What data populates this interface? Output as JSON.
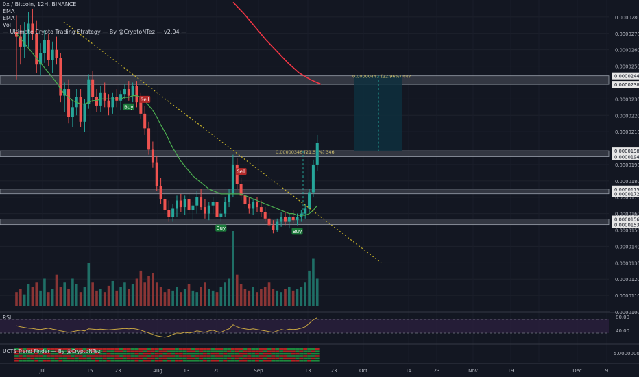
{
  "legend": {
    "symbol_line": "0x / Bitcoin, 12H, BINANCE",
    "ema1": "EMA",
    "ema2": "EMA",
    "vol": "Vol",
    "strategy": "— Ultimate Crypto Trading Strategy — By @CryptoNTez — v2.04 —"
  },
  "colors": {
    "background": "#131722",
    "up": "#26a69a",
    "down": "#ef5350",
    "ema_fast": "#4caf50",
    "ema_slow": "#f23645",
    "trendline": "#c8b32a",
    "zone_fill": "#3a3d48",
    "target_box": "#0e2f3d",
    "rsi_line": "#c7a642",
    "rsi_band": "#2a1f3d",
    "tag_text": "#d0c070"
  },
  "chart_data": {
    "type": "candlestick",
    "symbol": "0x / Bitcoin",
    "interval": "12H",
    "exchange": "BINANCE",
    "price_axis": {
      "min": 1e-05,
      "max": 2.9e-05,
      "ticks": [
        "0.00002800",
        "0.00002700",
        "0.00002600",
        "0.00002500",
        "0.00002300",
        "0.00002200",
        "0.00002100",
        "0.00001900",
        "0.00001800",
        "0.00001700",
        "0.00001600",
        "0.00001500",
        "0.00001400",
        "0.00001300",
        "0.00001200",
        "0.00001100",
        "0.00001000"
      ]
    },
    "price_labels": [
      {
        "text": "0.00002441",
        "value": 2.441e-05
      },
      {
        "text": "0.00002389",
        "value": 2.389e-05
      },
      {
        "text": "0.00001983",
        "value": 1.983e-05
      },
      {
        "text": "0.00001948",
        "value": 1.948e-05
      },
      {
        "text": "0.00001750",
        "value": 1.75e-05
      },
      {
        "text": "0.00001721",
        "value": 1.721e-05
      },
      {
        "text": "0.00001567",
        "value": 1.567e-05
      },
      {
        "text": "0.00001533",
        "value": 1.533e-05
      }
    ],
    "zones": [
      {
        "top": 2.441e-05,
        "bottom": 2.389e-05
      },
      {
        "top": 1.983e-05,
        "bottom": 1.948e-05
      },
      {
        "top": 1.75e-05,
        "bottom": 1.721e-05
      },
      {
        "top": 1.567e-05,
        "bottom": 1.533e-05
      }
    ],
    "time_axis": [
      "Jul",
      "15",
      "23",
      "Aug",
      "13",
      "20",
      "Sep",
      "13",
      "23",
      "Oct",
      "14",
      "23",
      "Nov",
      "19",
      "Dec",
      "9"
    ],
    "candles": [
      [
        2.71e-05,
        2.81e-05,
        2.42e-05,
        2.68e-05
      ],
      [
        2.68e-05,
        2.75e-05,
        2.51e-05,
        2.62e-05
      ],
      [
        2.62e-05,
        2.77e-05,
        2.55e-05,
        2.7e-05
      ],
      [
        2.7e-05,
        2.83e-05,
        2.62e-05,
        2.76e-05
      ],
      [
        2.76e-05,
        2.85e-05,
        2.66e-05,
        2.7e-05
      ],
      [
        2.7e-05,
        2.78e-05,
        2.46e-05,
        2.51e-05
      ],
      [
        2.51e-05,
        2.64e-05,
        2.44e-05,
        2.58e-05
      ],
      [
        2.58e-05,
        2.72e-05,
        2.52e-05,
        2.66e-05
      ],
      [
        2.66e-05,
        2.7e-05,
        2.5e-05,
        2.54e-05
      ],
      [
        2.54e-05,
        2.65e-05,
        2.46e-05,
        2.6e-05
      ],
      [
        2.6e-05,
        2.68e-05,
        2.51e-05,
        2.55e-05
      ],
      [
        2.55e-05,
        2.58e-05,
        2.28e-05,
        2.32e-05
      ],
      [
        2.32e-05,
        2.4e-05,
        2.22e-05,
        2.36e-05
      ],
      [
        2.36e-05,
        2.42e-05,
        2.15e-05,
        2.19e-05
      ],
      [
        2.19e-05,
        2.29e-05,
        2.13e-05,
        2.25e-05
      ],
      [
        2.25e-05,
        2.36e-05,
        2.2e-05,
        2.31e-05
      ],
      [
        2.31e-05,
        2.36e-05,
        2.13e-05,
        2.16e-05
      ],
      [
        2.16e-05,
        2.3e-05,
        2.1e-05,
        2.27e-05
      ],
      [
        2.27e-05,
        2.45e-05,
        2.24e-05,
        2.42e-05
      ],
      [
        2.42e-05,
        2.47e-05,
        2.28e-05,
        2.31e-05
      ],
      [
        2.31e-05,
        2.36e-05,
        2.22e-05,
        2.26e-05
      ],
      [
        2.26e-05,
        2.38e-05,
        2.22e-05,
        2.34e-05
      ],
      [
        2.34e-05,
        2.4e-05,
        2.25e-05,
        2.29e-05
      ],
      [
        2.29e-05,
        2.33e-05,
        2.2e-05,
        2.25e-05
      ],
      [
        2.25e-05,
        2.34e-05,
        2.21e-05,
        2.31e-05
      ],
      [
        2.31e-05,
        2.36e-05,
        2.25e-05,
        2.29e-05
      ],
      [
        2.29e-05,
        2.35e-05,
        2.23e-05,
        2.33e-05
      ],
      [
        2.33e-05,
        2.39e-05,
        2.3e-05,
        2.36e-05
      ],
      [
        2.36e-05,
        2.41e-05,
        2.29e-05,
        2.32e-05
      ],
      [
        2.32e-05,
        2.4e-05,
        2.28e-05,
        2.38e-05
      ],
      [
        2.38e-05,
        2.41e-05,
        2.25e-05,
        2.28e-05
      ],
      [
        2.28e-05,
        2.34e-05,
        2.18e-05,
        2.21e-05
      ],
      [
        2.21e-05,
        2.26e-05,
        2.08e-05,
        2.12e-05
      ],
      [
        2.12e-05,
        2.16e-05,
        1.96e-05,
        1.99e-05
      ],
      [
        1.99e-05,
        2.04e-05,
        1.88e-05,
        1.91e-05
      ],
      [
        1.91e-05,
        1.95e-05,
        1.74e-05,
        1.77e-05
      ],
      [
        1.77e-05,
        1.82e-05,
        1.66e-05,
        1.69e-05
      ],
      [
        1.69e-05,
        1.73e-05,
        1.6e-05,
        1.62e-05
      ],
      [
        1.62e-05,
        1.68e-05,
        1.55e-05,
        1.58e-05
      ],
      [
        1.58e-05,
        1.66e-05,
        1.55e-05,
        1.63e-05
      ],
      [
        1.63e-05,
        1.71e-05,
        1.58e-05,
        1.68e-05
      ],
      [
        1.68e-05,
        1.72e-05,
        1.61e-05,
        1.64e-05
      ],
      [
        1.64e-05,
        1.71e-05,
        1.59e-05,
        1.69e-05
      ],
      [
        1.69e-05,
        1.73e-05,
        1.6e-05,
        1.62e-05
      ],
      [
        1.62e-05,
        1.67e-05,
        1.56e-05,
        1.65e-05
      ],
      [
        1.65e-05,
        1.74e-05,
        1.6e-05,
        1.7e-05
      ],
      [
        1.7e-05,
        1.75e-05,
        1.62e-05,
        1.64e-05
      ],
      [
        1.64e-05,
        1.69e-05,
        1.57e-05,
        1.6e-05
      ],
      [
        1.6e-05,
        1.67e-05,
        1.56e-05,
        1.65e-05
      ],
      [
        1.65e-05,
        1.7e-05,
        1.6e-05,
        1.67e-05
      ],
      [
        1.67e-05,
        1.69e-05,
        1.56e-05,
        1.58e-05
      ],
      [
        1.58e-05,
        1.62e-05,
        1.55e-05,
        1.6e-05
      ],
      [
        1.6e-05,
        1.7e-05,
        1.58e-05,
        1.67e-05
      ],
      [
        1.67e-05,
        1.75e-05,
        1.64e-05,
        1.72e-05
      ],
      [
        1.72e-05,
        1.96e-05,
        1.7e-05,
        1.9e-05
      ],
      [
        1.9e-05,
        1.94e-05,
        1.75e-05,
        1.78e-05
      ],
      [
        1.78e-05,
        1.82e-05,
        1.68e-05,
        1.71e-05
      ],
      [
        1.71e-05,
        1.75e-05,
        1.63e-05,
        1.66e-05
      ],
      [
        1.66e-05,
        1.7e-05,
        1.6e-05,
        1.63e-05
      ],
      [
        1.63e-05,
        1.69e-05,
        1.59e-05,
        1.67e-05
      ],
      [
        1.67e-05,
        1.7e-05,
        1.61e-05,
        1.64e-05
      ],
      [
        1.64e-05,
        1.68e-05,
        1.58e-05,
        1.61e-05
      ],
      [
        1.61e-05,
        1.64e-05,
        1.55e-05,
        1.57e-05
      ],
      [
        1.57e-05,
        1.61e-05,
        1.51e-05,
        1.53e-05
      ],
      [
        1.53e-05,
        1.56e-05,
        1.48e-05,
        1.5e-05
      ],
      [
        1.5e-05,
        1.57e-05,
        1.49e-05,
        1.55e-05
      ],
      [
        1.55e-05,
        1.61e-05,
        1.52e-05,
        1.58e-05
      ],
      [
        1.58e-05,
        1.61e-05,
        1.53e-05,
        1.55e-05
      ],
      [
        1.55e-05,
        1.6e-05,
        1.51e-05,
        1.58e-05
      ],
      [
        1.58e-05,
        1.62e-05,
        1.54e-05,
        1.56e-05
      ],
      [
        1.56e-05,
        1.6e-05,
        1.53e-05,
        1.58e-05
      ],
      [
        1.58e-05,
        1.62e-05,
        1.55e-05,
        1.6e-05
      ],
      [
        1.6e-05,
        1.66e-05,
        1.57e-05,
        1.63e-05
      ],
      [
        1.63e-05,
        1.75e-05,
        1.61e-05,
        1.73e-05
      ],
      [
        1.73e-05,
        1.93e-05,
        1.7e-05,
        1.9e-05
      ],
      [
        1.9e-05,
        2.08e-05,
        1.86e-05,
        2.03e-05
      ]
    ],
    "volume": [
      18,
      22,
      15,
      28,
      25,
      30,
      20,
      35,
      18,
      22,
      40,
      25,
      30,
      22,
      35,
      28,
      18,
      25,
      55,
      30,
      20,
      22,
      18,
      26,
      32,
      20,
      25,
      30,
      22,
      28,
      35,
      45,
      30,
      38,
      42,
      30,
      25,
      18,
      22,
      20,
      25,
      18,
      22,
      28,
      20,
      18,
      25,
      30,
      22,
      20,
      18,
      25,
      30,
      35,
      95,
      40,
      28,
      22,
      20,
      25,
      18,
      22,
      25,
      30,
      22,
      20,
      18,
      22,
      25,
      20,
      22,
      25,
      30,
      45,
      60,
      35
    ],
    "ema_fast": [
      2.7e-05,
      2.67e-05,
      2.64e-05,
      2.61e-05,
      2.58e-05,
      2.55e-05,
      2.52e-05,
      2.49e-05,
      2.46e-05,
      2.43e-05,
      2.4e-05,
      2.36e-05,
      2.33e-05,
      2.31e-05,
      2.29e-05,
      2.28e-05,
      2.27e-05,
      2.27e-05,
      2.28e-05,
      2.29e-05,
      2.29e-05,
      2.3e-05,
      2.3e-05,
      2.3e-05,
      2.3e-05,
      2.3e-05,
      2.3e-05,
      2.31e-05,
      2.31e-05,
      2.32e-05,
      2.32e-05,
      2.31e-05,
      2.29e-05,
      2.26e-05,
      2.23e-05,
      2.19e-05,
      2.14e-05,
      2.1e-05,
      2.05e-05,
      2e-05,
      1.96e-05,
      1.92e-05,
      1.89e-05,
      1.86e-05,
      1.83e-05,
      1.81e-05,
      1.79e-05,
      1.77e-05,
      1.75e-05,
      1.74e-05,
      1.73e-05,
      1.72e-05,
      1.72e-05,
      1.72e-05,
      1.72e-05,
      1.72e-05,
      1.72e-05,
      1.71e-05,
      1.7e-05,
      1.69e-05,
      1.68e-05,
      1.67e-05,
      1.66e-05,
      1.65e-05,
      1.64e-05,
      1.63e-05,
      1.62e-05,
      1.61e-05,
      1.6e-05,
      1.6e-05,
      1.59e-05,
      1.59e-05,
      1.59e-05,
      1.6e-05,
      1.62e-05,
      1.65e-05
    ],
    "ema_slow_points": [
      [
        42,
        2.89e-05
      ],
      [
        46,
        2.82e-05
      ],
      [
        50,
        2.74e-05
      ],
      [
        54,
        2.66e-05
      ],
      [
        58,
        2.59e-05
      ],
      [
        62,
        2.52e-05
      ],
      [
        66,
        2.46e-05
      ],
      [
        70,
        2.42e-05
      ],
      [
        75,
        2.39e-05
      ]
    ],
    "trendline": {
      "from": [
        14,
        2.77e-05
      ],
      "to": [
        89,
        1.3e-05
      ]
    },
    "rsi": {
      "label": "RSI",
      "levels": [
        "80.00",
        "40.00"
      ],
      "values": [
        55,
        52,
        50,
        48,
        47,
        45,
        44,
        46,
        48,
        45,
        43,
        40,
        38,
        36,
        38,
        40,
        42,
        40,
        46,
        45,
        44,
        45,
        44,
        43,
        44,
        45,
        46,
        47,
        46,
        47,
        45,
        42,
        38,
        34,
        30,
        26,
        24,
        22,
        25,
        30,
        34,
        33,
        36,
        34,
        36,
        40,
        38,
        36,
        40,
        42,
        38,
        36,
        42,
        46,
        58,
        52,
        48,
        46,
        44,
        46,
        44,
        42,
        40,
        38,
        36,
        40,
        44,
        42,
        45,
        44,
        45,
        48,
        52,
        62,
        72,
        78
      ]
    },
    "signals": [
      {
        "label": "Buy",
        "index": 28
      },
      {
        "label": "Sell",
        "index": 32
      },
      {
        "label": "Buy",
        "index": 51
      },
      {
        "label": "Sell",
        "index": 56
      },
      {
        "label": "Buy",
        "index": 70
      }
    ],
    "measurements": [
      {
        "label": "0.00000447 (22.96%) 447"
      },
      {
        "label": "0.00000346 (21.58%) 346"
      }
    ],
    "sub_indicator": {
      "label": "UCTS Trend Finder — By @CryptoNTez",
      "axis_label": "5.00000000"
    }
  }
}
